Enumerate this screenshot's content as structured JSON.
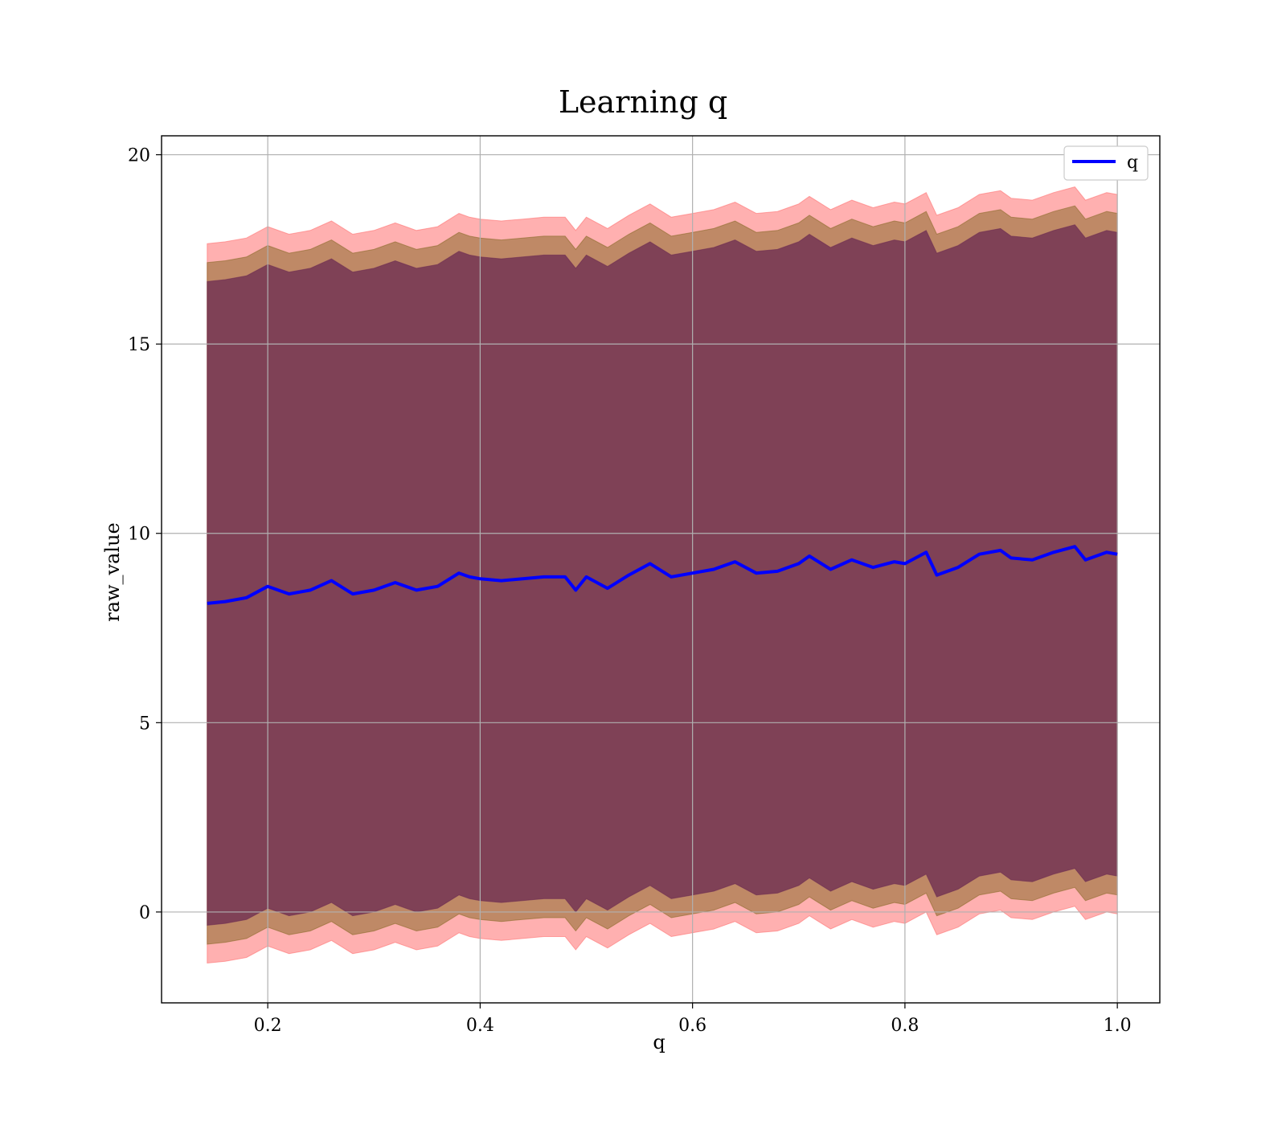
{
  "chart_data": {
    "type": "line",
    "title": "Learning q",
    "xlabel": "q",
    "ylabel": "raw_value",
    "xlim": [
      0.1,
      1.04
    ],
    "ylim": [
      -2.4,
      20.5
    ],
    "xticks": [
      0.2,
      0.4,
      0.6,
      0.8,
      1.0
    ],
    "xtick_labels": [
      "0.2",
      "0.4",
      "0.6",
      "0.8",
      "1.0"
    ],
    "yticks": [
      0,
      5,
      10,
      15,
      20
    ],
    "ytick_labels": [
      "0",
      "5",
      "10",
      "15",
      "20"
    ],
    "grid": true,
    "legend": {
      "position": "top-right",
      "entries": [
        "q"
      ]
    },
    "colors": {
      "line": "#0000ff",
      "band_outer": "#ff6f6f",
      "band_middle": "#8a6a2a",
      "band_inner": "#6a2a52"
    },
    "x": [
      0.143,
      0.16,
      0.18,
      0.2,
      0.22,
      0.24,
      0.26,
      0.28,
      0.3,
      0.32,
      0.34,
      0.36,
      0.38,
      0.39,
      0.4,
      0.42,
      0.44,
      0.46,
      0.48,
      0.49,
      0.5,
      0.52,
      0.54,
      0.56,
      0.58,
      0.6,
      0.62,
      0.64,
      0.66,
      0.68,
      0.7,
      0.71,
      0.73,
      0.75,
      0.77,
      0.79,
      0.8,
      0.82,
      0.83,
      0.85,
      0.87,
      0.89,
      0.9,
      0.92,
      0.94,
      0.96,
      0.97,
      0.99,
      1.0
    ],
    "series": [
      {
        "name": "q",
        "values": [
          8.15,
          8.2,
          8.3,
          8.6,
          8.4,
          8.5,
          8.75,
          8.4,
          8.5,
          8.7,
          8.5,
          8.6,
          8.95,
          8.85,
          8.8,
          8.75,
          8.8,
          8.85,
          8.85,
          8.5,
          8.85,
          8.55,
          8.9,
          9.2,
          8.85,
          8.95,
          9.05,
          9.25,
          8.95,
          9.0,
          9.2,
          9.4,
          9.05,
          9.3,
          9.1,
          9.25,
          9.2,
          9.5,
          8.9,
          9.1,
          9.45,
          9.55,
          9.35,
          9.3,
          9.5,
          9.65,
          9.3,
          9.5,
          9.45
        ]
      }
    ],
    "bands": [
      {
        "name": "outer",
        "offset": 9.5
      },
      {
        "name": "middle",
        "offset": 9.0
      },
      {
        "name": "inner",
        "offset": 8.5
      }
    ]
  }
}
